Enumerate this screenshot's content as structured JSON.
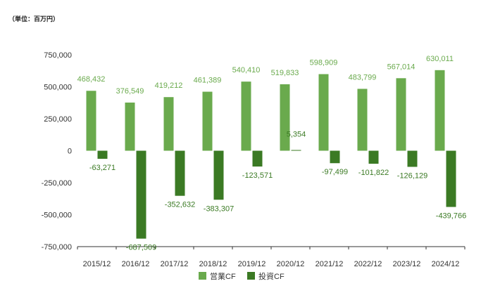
{
  "unit_label": "（単位：百万円）",
  "colors": {
    "operating": "#6aaa4d",
    "investing": "#3b7a24",
    "axis": "#333333"
  },
  "chart_data": {
    "type": "bar",
    "categories": [
      "2015/12",
      "2016/12",
      "2017/12",
      "2018/12",
      "2019/12",
      "2020/12",
      "2021/12",
      "2022/12",
      "2023/12",
      "2024/12"
    ],
    "series": [
      {
        "name": "営業CF",
        "values": [
          468432,
          376549,
          419212,
          461389,
          540410,
          519833,
          598909,
          483799,
          567014,
          630011
        ],
        "labels": [
          "468,432",
          "376,549",
          "419,212",
          "461,389",
          "540,410",
          "519,833",
          "598,909",
          "483,799",
          "567,014",
          "630,011"
        ]
      },
      {
        "name": "投資CF",
        "values": [
          -63271,
          -687509,
          -352632,
          -383307,
          -123571,
          5354,
          -97499,
          -101822,
          -126129,
          -439766
        ],
        "labels": [
          "-63,271",
          "-687,509",
          "-352,632",
          "-383,307",
          "-123,571",
          "5,354",
          "-97,499",
          "-101,822",
          "-126,129",
          "-439,766"
        ]
      }
    ],
    "ylim": [
      -750000,
      750000
    ],
    "yticks": [
      750000,
      500000,
      250000,
      0,
      -250000,
      -500000,
      -750000
    ],
    "ytick_labels": [
      "750,000",
      "500,000",
      "250,000",
      "0",
      "-250,000",
      "-500,000",
      "-750,000"
    ],
    "grid": false,
    "legend": "bottom"
  }
}
